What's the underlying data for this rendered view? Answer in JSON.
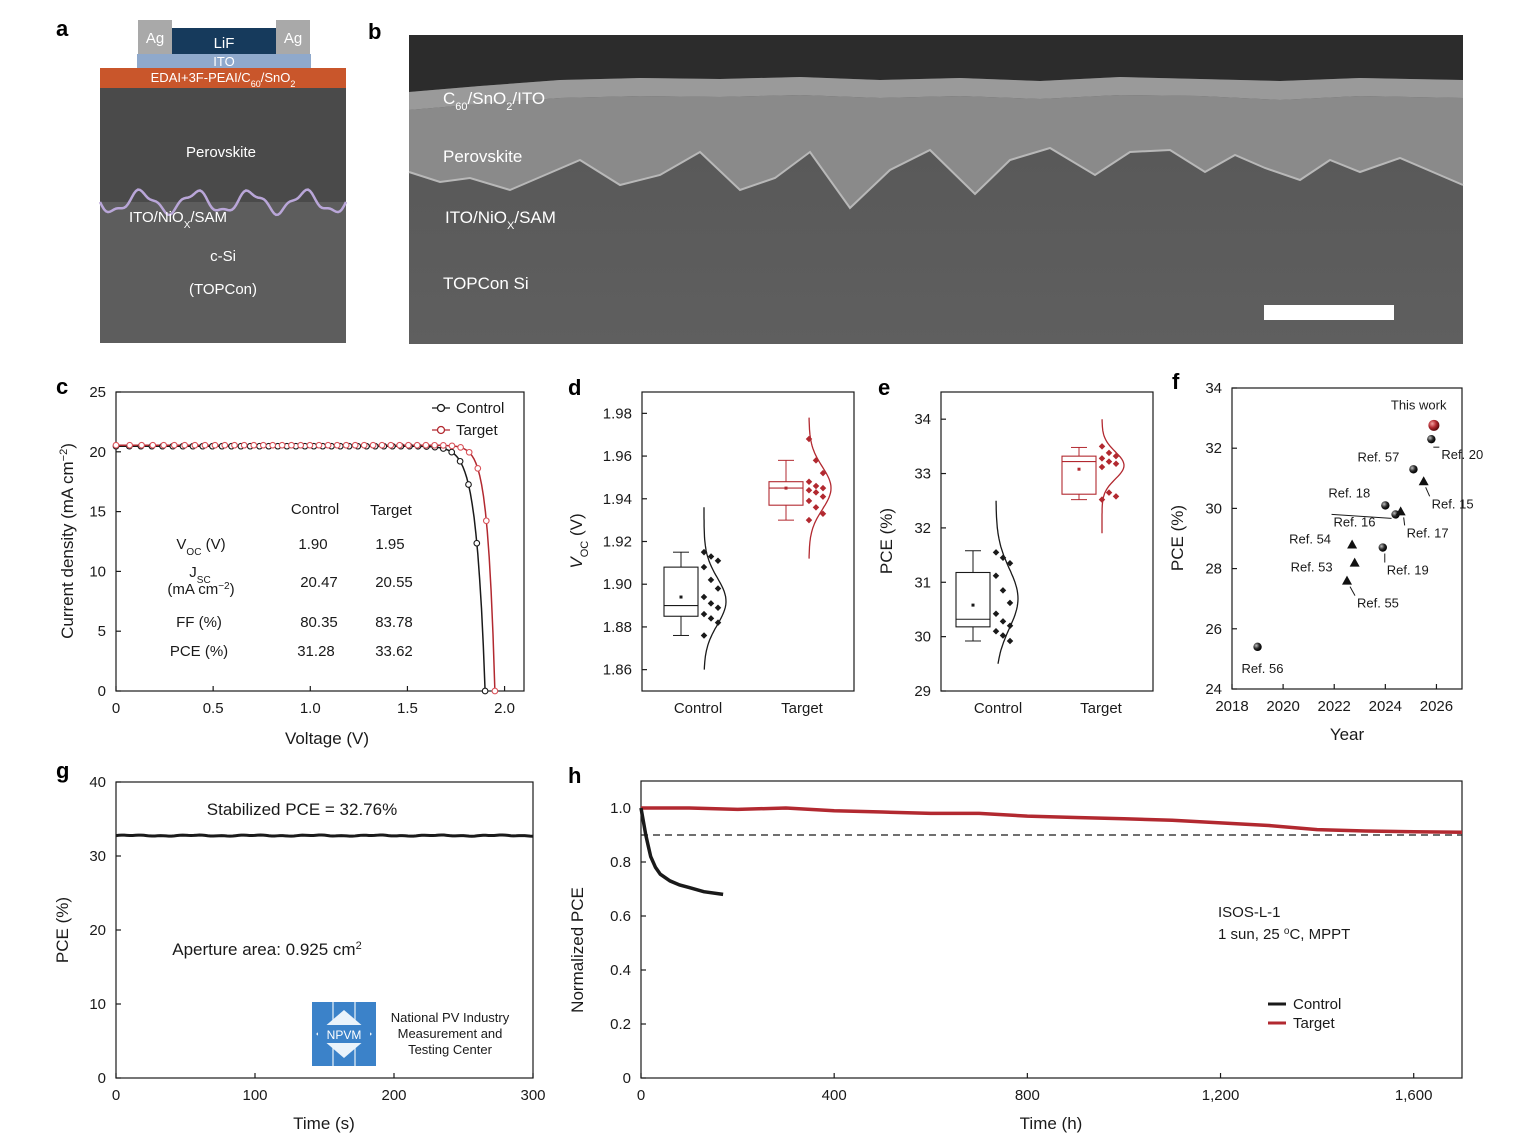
{
  "colors": {
    "control": "#1a1a1a",
    "target": "#b22930",
    "target_light": "#d9535a",
    "background": "#ffffff"
  },
  "panel_letters": {
    "a": "a",
    "b": "b",
    "c": "c",
    "d": "d",
    "e": "e",
    "f": "f",
    "g": "g",
    "h": "h"
  },
  "panel_a": {
    "layers": {
      "ag_left": "Ag",
      "ag_right": "Ag",
      "lif": "LiF",
      "ito": "ITO",
      "etl_pre": "EDAI+3F-PEAI/C",
      "etl_sub1": "60",
      "etl_mid": "/SnO",
      "etl_sub2": "2",
      "perovskite": "Perovskite",
      "htl_pre": "ITO/NiO",
      "htl_sub": "X",
      "htl_post": "/SAM",
      "si": "c-Si",
      "si_type": "(TOPCon)"
    }
  },
  "panel_b": {
    "labels": {
      "top_pre": "C",
      "top_sub1": "60",
      "top_mid": "/SnO",
      "top_sub2": "2",
      "top_post": "/ITO",
      "perovskite": "Perovskite",
      "htl_pre": "ITO/NiO",
      "htl_sub": "X",
      "htl_post": "/SAM",
      "si": "TOPCon Si"
    }
  },
  "chart_data": [
    {
      "panel": "c",
      "type": "line",
      "xlabel": "Voltage (V)",
      "ylabel_pre": "Current density (mA cm",
      "ylabel_sup": "−2",
      "ylabel_post": ")",
      "xlim": [
        0,
        2.1
      ],
      "ylim": [
        0,
        25
      ],
      "xticks": [
        "0",
        "0.5",
        "1.0",
        "1.5",
        "2.0"
      ],
      "yticks": [
        "0",
        "5",
        "10",
        "15",
        "20",
        "25"
      ],
      "legend": [
        "Control",
        "Target"
      ],
      "series": [
        {
          "name": "Control",
          "jsc": 20.47,
          "voc": 1.9,
          "n_ideality": 1.8,
          "xy": [
            [
              0,
              20.8
            ],
            [
              0.4,
              20.7
            ],
            [
              0.8,
              20.6
            ],
            [
              1.2,
              20.4
            ],
            [
              1.5,
              20.0
            ],
            [
              1.6,
              19.6
            ],
            [
              1.7,
              18.0
            ],
            [
              1.75,
              15.8
            ],
            [
              1.8,
              12.3
            ],
            [
              1.85,
              7.6
            ],
            [
              1.88,
              3.9
            ],
            [
              1.9,
              0.0
            ]
          ]
        },
        {
          "name": "Target",
          "jsc": 20.55,
          "voc": 1.95,
          "n_ideality": 1.45,
          "xy": [
            [
              0,
              21.0
            ],
            [
              0.4,
              20.9
            ],
            [
              0.8,
              20.8
            ],
            [
              1.2,
              20.7
            ],
            [
              1.5,
              20.5
            ],
            [
              1.6,
              20.3
            ],
            [
              1.7,
              19.4
            ],
            [
              1.8,
              16.5
            ],
            [
              1.85,
              13.6
            ],
            [
              1.9,
              8.5
            ],
            [
              1.93,
              4.2
            ],
            [
              1.95,
              0.0
            ]
          ]
        }
      ],
      "table": {
        "col_control": "Control",
        "col_target": "Target",
        "rows": [
          {
            "label_pre": "V",
            "label_sub": "OC",
            "label_post": " (V)",
            "control": "1.90",
            "target": "1.95"
          },
          {
            "label_pre": "J",
            "label_sub": "SC",
            "label_post": "",
            "label_line2_pre": "(mA cm",
            "label_line2_sup": "−2",
            "label_line2_post": ")",
            "control": "20.47",
            "target": "20.55"
          },
          {
            "label": "FF (%)",
            "control": "80.35",
            "target": "83.78"
          },
          {
            "label": "PCE (%)",
            "control": "31.28",
            "target": "33.62"
          }
        ]
      }
    },
    {
      "panel": "d",
      "type": "box",
      "ylabel_pre": "V",
      "ylabel_sub": "OC",
      "ylabel_post": " (V)",
      "ylim": [
        1.85,
        1.99
      ],
      "yticks": [
        "1.86",
        "1.88",
        "1.90",
        "1.92",
        "1.94",
        "1.96",
        "1.98"
      ],
      "categories": [
        "Control",
        "Target"
      ],
      "boxes": [
        {
          "name": "Control",
          "min": 1.876,
          "q1": 1.885,
          "median": 1.89,
          "q3": 1.908,
          "max": 1.915,
          "mean": 1.894,
          "points": [
            1.915,
            1.913,
            1.911,
            1.908,
            1.902,
            1.898,
            1.894,
            1.891,
            1.889,
            1.886,
            1.884,
            1.882,
            1.876
          ],
          "fit_mean": 1.892,
          "fit_sd": 0.011,
          "fit_range": [
            1.86,
            1.936
          ]
        },
        {
          "name": "Target",
          "min": 1.93,
          "q1": 1.937,
          "median": 1.945,
          "q3": 1.948,
          "max": 1.958,
          "mean": 1.945,
          "points": [
            1.968,
            1.958,
            1.952,
            1.948,
            1.946,
            1.945,
            1.944,
            1.943,
            1.941,
            1.939,
            1.936,
            1.933,
            1.93
          ],
          "fit_mean": 1.945,
          "fit_sd": 0.01,
          "fit_range": [
            1.912,
            1.978
          ]
        }
      ]
    },
    {
      "panel": "e",
      "type": "box",
      "ylabel": "PCE (%)",
      "ylim": [
        29,
        34.5
      ],
      "yticks": [
        "29",
        "30",
        "31",
        "32",
        "33",
        "34"
      ],
      "categories": [
        "Control",
        "Target"
      ],
      "boxes": [
        {
          "name": "Control",
          "min": 29.92,
          "q1": 30.18,
          "median": 30.32,
          "q3": 31.18,
          "max": 31.58,
          "mean": 30.58,
          "points": [
            31.55,
            31.45,
            31.35,
            31.12,
            30.85,
            30.62,
            30.42,
            30.28,
            30.2,
            30.1,
            30.02,
            29.92
          ],
          "fit_mean": 30.7,
          "fit_sd": 0.55,
          "fit_range": [
            29.5,
            32.5
          ]
        },
        {
          "name": "Target",
          "min": 32.52,
          "q1": 32.62,
          "median": 33.22,
          "q3": 33.32,
          "max": 33.48,
          "mean": 33.08,
          "points": [
            33.5,
            33.38,
            33.32,
            33.28,
            33.22,
            33.18,
            33.12,
            32.65,
            32.58,
            32.52
          ],
          "fit_mean": 33.15,
          "fit_sd": 0.25,
          "fit_range": [
            31.9,
            34.0
          ]
        }
      ]
    },
    {
      "panel": "f",
      "type": "scatter",
      "xlabel": "Year",
      "ylabel": "PCE (%)",
      "xlim": [
        2018,
        2027
      ],
      "ylim": [
        24,
        34
      ],
      "xticks": [
        "2018",
        "2020",
        "2022",
        "2024",
        "2026"
      ],
      "yticks": [
        "24",
        "26",
        "28",
        "30",
        "32",
        "34"
      ],
      "points": [
        {
          "label": "This work",
          "x": 2025.9,
          "y": 32.76,
          "marker": "sphere-red"
        },
        {
          "label": "Ref. 20",
          "x": 2025.8,
          "y": 32.3,
          "marker": "sphere"
        },
        {
          "label": "Ref. 57",
          "x": 2025.1,
          "y": 31.3,
          "marker": "sphere"
        },
        {
          "label": "Ref. 15",
          "x": 2025.5,
          "y": 30.9,
          "marker": "triangle"
        },
        {
          "label": "Ref. 18",
          "x": 2024.0,
          "y": 30.1,
          "marker": "sphere"
        },
        {
          "label": "Ref. 16",
          "x": 2024.4,
          "y": 29.8,
          "marker": "sphere"
        },
        {
          "label": "Ref. 17",
          "x": 2024.6,
          "y": 29.9,
          "marker": "triangle"
        },
        {
          "label": "Ref. 54",
          "x": 2022.7,
          "y": 28.8,
          "marker": "triangle"
        },
        {
          "label": "Ref. 19",
          "x": 2023.9,
          "y": 28.7,
          "marker": "sphere"
        },
        {
          "label": "Ref. 53",
          "x": 2022.8,
          "y": 28.2,
          "marker": "triangle"
        },
        {
          "label": "Ref. 55",
          "x": 2022.5,
          "y": 27.6,
          "marker": "triangle"
        },
        {
          "label": "Ref. 56",
          "x": 2019.0,
          "y": 25.4,
          "marker": "sphere"
        }
      ]
    },
    {
      "panel": "g",
      "type": "line",
      "xlabel": "Time (s)",
      "ylabel": "PCE (%)",
      "xlim": [
        0,
        300
      ],
      "ylim": [
        0,
        40
      ],
      "xticks": [
        "0",
        "100",
        "200",
        "300"
      ],
      "yticks": [
        "0",
        "10",
        "20",
        "30",
        "40"
      ],
      "annotation_stabilized": "Stabilized PCE = 32.76%",
      "annotation_area_pre": "Aperture area: 0.925 cm",
      "annotation_area_sup": "2",
      "logo": {
        "mark": "NPVM",
        "line1": "National PV Industry",
        "line2": "Measurement and",
        "line3": "Testing Center"
      },
      "series": [
        {
          "value": 32.76
        }
      ]
    },
    {
      "panel": "h",
      "type": "line",
      "xlabel": "Time (h)",
      "ylabel": "Normalized PCE",
      "xlim": [
        0,
        1700
      ],
      "ylim": [
        0,
        1.1
      ],
      "xticks": [
        "0",
        "400",
        "800",
        "1,200",
        "1,600"
      ],
      "yticks": [
        "0",
        "0.2",
        "0.4",
        "0.6",
        "0.8",
        "1.0"
      ],
      "reference_line": 0.9,
      "annotation_line1": "ISOS-L-1",
      "annotation_line2_pre": "1 sun, 25 ",
      "annotation_line2_sup": "o",
      "annotation_line2_post": "C, MPPT",
      "legend": [
        "Control",
        "Target"
      ],
      "series": [
        {
          "name": "Control",
          "xy": [
            [
              0,
              1.0
            ],
            [
              5,
              0.95
            ],
            [
              10,
              0.9
            ],
            [
              15,
              0.86
            ],
            [
              20,
              0.82
            ],
            [
              30,
              0.78
            ],
            [
              40,
              0.755
            ],
            [
              60,
              0.73
            ],
            [
              80,
              0.715
            ],
            [
              100,
              0.705
            ],
            [
              130,
              0.69
            ],
            [
              170,
              0.68
            ]
          ]
        },
        {
          "name": "Target",
          "xy": [
            [
              0,
              1.0
            ],
            [
              100,
              1.0
            ],
            [
              200,
              0.995
            ],
            [
              300,
              1.0
            ],
            [
              400,
              0.99
            ],
            [
              500,
              0.985
            ],
            [
              600,
              0.98
            ],
            [
              700,
              0.98
            ],
            [
              800,
              0.97
            ],
            [
              900,
              0.965
            ],
            [
              1000,
              0.96
            ],
            [
              1100,
              0.955
            ],
            [
              1200,
              0.945
            ],
            [
              1300,
              0.935
            ],
            [
              1400,
              0.92
            ],
            [
              1500,
              0.915
            ],
            [
              1600,
              0.912
            ],
            [
              1700,
              0.91
            ]
          ]
        }
      ]
    }
  ]
}
